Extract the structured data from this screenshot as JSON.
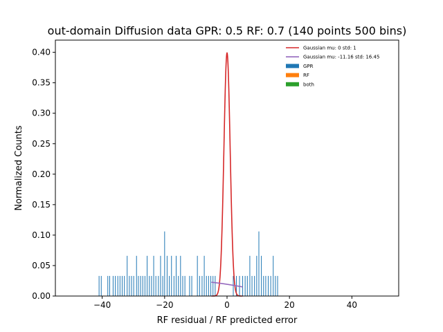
{
  "chart_data": {
    "type": "bar",
    "title": "out-domain Diffusion data GPR: 0.5 RF: 0.7 (140 points 500 bins)",
    "xlabel": "RF residual / RF predicted error",
    "ylabel": "Normalized Counts",
    "xlim": [
      -55,
      55
    ],
    "ylim": [
      0,
      0.42
    ],
    "xticks": [
      -40,
      -20,
      0,
      20,
      40
    ],
    "xtick_labels": [
      "−40",
      "−20",
      "0",
      "20",
      "40"
    ],
    "yticks": [
      0,
      0.05,
      0.1,
      0.15,
      0.2,
      0.25,
      0.3,
      0.35,
      0.4
    ],
    "ytick_labels": [
      "0.00",
      "0.05",
      "0.10",
      "0.15",
      "0.20",
      "0.25",
      "0.30",
      "0.35",
      "0.40"
    ],
    "grid": false,
    "legend_position": "top-right",
    "colors": {
      "gpr": "#1f77b4",
      "rf": "#ff7f0e",
      "both": "#2ca02c",
      "gauss_std": "#d62728",
      "gauss_fit": "#9467bd"
    },
    "legend": [
      {
        "label": "Gaussian mu: 0 std: 1",
        "kind": "line",
        "color": "#d62728"
      },
      {
        "label": "Gaussian mu: -11.16 std: 16.45",
        "kind": "line",
        "color": "#9467bd"
      },
      {
        "label": "GPR",
        "kind": "patch",
        "color": "#1f77b4"
      },
      {
        "label": "RF",
        "kind": "patch",
        "color": "#ff7f0e"
      },
      {
        "label": "both",
        "kind": "patch",
        "color": "#2ca02c"
      }
    ],
    "series": [
      {
        "name": "GPR",
        "x": [
          -41.0,
          -40.3,
          -38.2,
          -37.6,
          -36.5,
          -35.8,
          -35.0,
          -34.3,
          -33.6,
          -32.9,
          -32.0,
          -31.3,
          -30.6,
          -29.9,
          -29.0,
          -28.4,
          -27.7,
          -27.0,
          -26.3,
          -25.6,
          -24.9,
          -24.2,
          -23.5,
          -22.8,
          -22.0,
          -21.3,
          -20.6,
          -20.0,
          -19.2,
          -18.5,
          -17.8,
          -17.0,
          -16.3,
          -15.6,
          -14.9,
          -14.2,
          -13.5,
          -12.0,
          -11.3,
          -9.5,
          -8.8,
          -8.0,
          -7.3,
          -6.6,
          -5.9,
          -5.2,
          -4.5,
          -3.8,
          2.0,
          3.0,
          4.0,
          5.0,
          5.8,
          6.5,
          7.3,
          8.0,
          8.8,
          9.5,
          10.2,
          11.0,
          11.7,
          12.4,
          13.2,
          14.0,
          14.8,
          15.5,
          16.2
        ],
        "values": [
          0.033,
          0.033,
          0.033,
          0.033,
          0.033,
          0.033,
          0.033,
          0.033,
          0.033,
          0.033,
          0.066,
          0.033,
          0.033,
          0.033,
          0.066,
          0.033,
          0.033,
          0.033,
          0.033,
          0.066,
          0.033,
          0.033,
          0.066,
          0.033,
          0.033,
          0.066,
          0.033,
          0.106,
          0.066,
          0.033,
          0.066,
          0.033,
          0.066,
          0.033,
          0.066,
          0.033,
          0.033,
          0.033,
          0.033,
          0.066,
          0.033,
          0.033,
          0.066,
          0.033,
          0.033,
          0.033,
          0.033,
          0.033,
          0.033,
          0.033,
          0.033,
          0.033,
          0.033,
          0.033,
          0.066,
          0.033,
          0.033,
          0.066,
          0.106,
          0.066,
          0.033,
          0.033,
          0.033,
          0.033,
          0.066,
          0.033,
          0.033
        ]
      },
      {
        "name": "RF",
        "x": [],
        "values": []
      },
      {
        "name": "both",
        "x": [],
        "values": []
      }
    ],
    "curves": [
      {
        "name": "Gaussian mu: 0 std: 1",
        "mu": 0,
        "std": 1,
        "x_range": [
          -5,
          5
        ]
      },
      {
        "name": "Gaussian mu: -11.16 std: 16.45",
        "mu": -11.16,
        "std": 16.45,
        "x_range": [
          -5,
          5
        ]
      }
    ]
  }
}
